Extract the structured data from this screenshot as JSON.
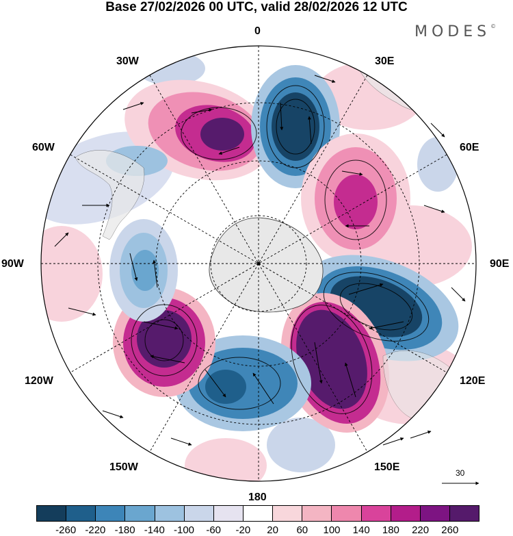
{
  "title": "Base 27/02/2026 00 UTC, valid 28/02/2026 12 UTC",
  "brand": "MODES",
  "brand_mark": "©",
  "longitude_labels": {
    "top": "0",
    "bottom": "180",
    "left": "90W",
    "right": "90E",
    "upper_left_30": "30W",
    "upper_left_60": "60W",
    "upper_right_30": "30E",
    "upper_right_60": "60E",
    "lower_left_120": "120W",
    "lower_left_150": "150W",
    "lower_right_120": "120E",
    "lower_right_150": "150E"
  },
  "vector_scale_label": "30",
  "colorbar": {
    "colors": [
      "#143d5b",
      "#1f5f8b",
      "#3d85b8",
      "#6aa6cf",
      "#9dc2e0",
      "#cad6ea",
      "#e6e3f0",
      "#ffffff",
      "#f8d7dc",
      "#f4b5c3",
      "#ee87ad",
      "#d9439b",
      "#b31d8a",
      "#7d1482",
      "#551a6b"
    ],
    "ticks": [
      "-260",
      "-220",
      "-180",
      "-140",
      "-100",
      "-60",
      "-20",
      "20",
      "60",
      "100",
      "140",
      "180",
      "220",
      "260"
    ]
  },
  "map_colors": {
    "ocean_bg": "#ffffff",
    "land": "#e8e8e8",
    "deep_blue": "#174466",
    "mid_blue": "#3f86b8",
    "light_blue": "#a9c7e2",
    "pale_blue": "#d9dff0",
    "deep_purple": "#561b6c",
    "magenta": "#c42c90",
    "pink": "#ef90b5",
    "light_pink": "#f8d3dc"
  }
}
